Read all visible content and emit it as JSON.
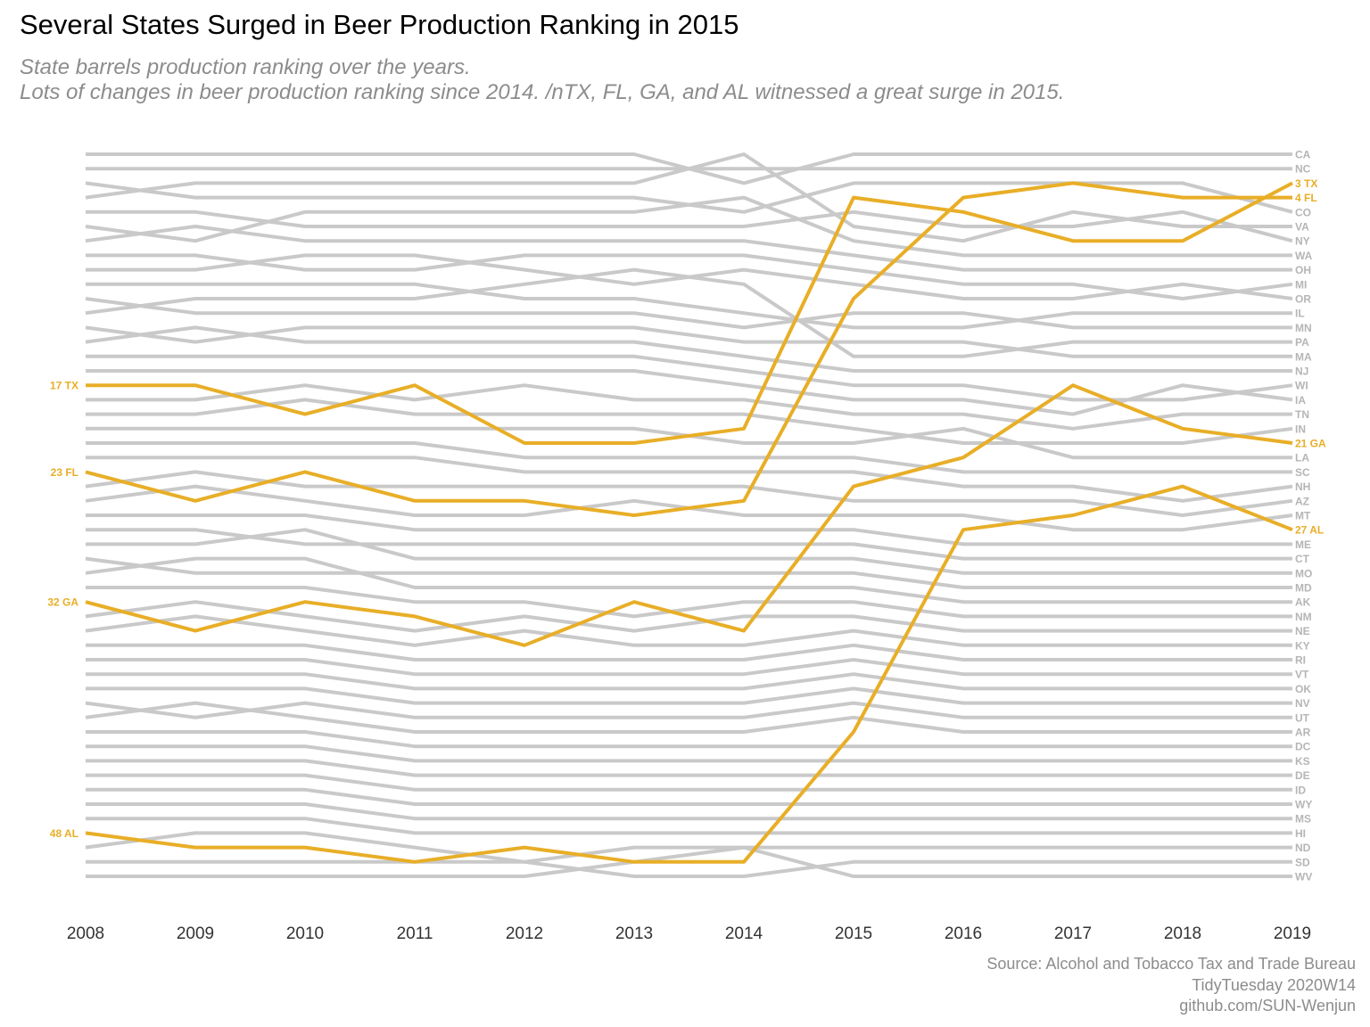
{
  "title": "Several States Surged in Beer Production Ranking in 2015",
  "subtitle_line1": "State barrels production ranking over the years.",
  "subtitle_line2": "Lots of changes in beer production ranking since 2014. /nTX, FL, GA, and AL witnessed a great surge in 2015.",
  "caption_line1": "Source: Alcohol and Tobacco Tax and Trade Bureau",
  "caption_line2": "TidyTuesday 2020W14",
  "caption_line3": "github.com/SUN-Wenjun",
  "colors": {
    "highlight": "#E8AE27",
    "background_lines": "#C9C9C9",
    "right_labels": "#B5B5B5",
    "axis_text": "#333333"
  },
  "chart_data": {
    "type": "line",
    "x": [
      2008,
      2009,
      2010,
      2011,
      2012,
      2013,
      2014,
      2015,
      2016,
      2017,
      2018,
      2019
    ],
    "y_reversed": true,
    "ylim": [
      1,
      51
    ],
    "grid": false,
    "highlight_series": [
      {
        "name": "TX",
        "values": [
          17,
          17,
          19,
          17,
          21,
          21,
          20,
          4,
          5,
          7,
          7,
          3
        ]
      },
      {
        "name": "FL",
        "values": [
          23,
          25,
          23,
          25,
          25,
          26,
          25,
          11,
          4,
          3,
          4,
          4
        ]
      },
      {
        "name": "GA",
        "values": [
          32,
          34,
          32,
          33,
          35,
          32,
          34,
          24,
          22,
          17,
          20,
          21
        ]
      },
      {
        "name": "AL",
        "values": [
          48,
          49,
          49,
          50,
          49,
          50,
          50,
          41,
          27,
          26,
          24,
          27
        ]
      }
    ],
    "left_labels": [
      {
        "rank": 17,
        "label": "17 TX"
      },
      {
        "rank": 23,
        "label": "23 FL"
      },
      {
        "rank": 32,
        "label": "32 GA"
      },
      {
        "rank": 48,
        "label": "48 AL"
      }
    ],
    "right_labels": [
      {
        "rank": 1,
        "label": "CA"
      },
      {
        "rank": 2,
        "label": "NC"
      },
      {
        "rank": 3,
        "label": "3 TX",
        "highlight": true
      },
      {
        "rank": 4,
        "label": "4 FL",
        "highlight": true
      },
      {
        "rank": 5,
        "label": "CO"
      },
      {
        "rank": 6,
        "label": "VA"
      },
      {
        "rank": 7,
        "label": "NY"
      },
      {
        "rank": 8,
        "label": "WA"
      },
      {
        "rank": 9,
        "label": "OH"
      },
      {
        "rank": 10,
        "label": "MI"
      },
      {
        "rank": 11,
        "label": "OR"
      },
      {
        "rank": 12,
        "label": "IL"
      },
      {
        "rank": 13,
        "label": "MN"
      },
      {
        "rank": 14,
        "label": "PA"
      },
      {
        "rank": 15,
        "label": "MA"
      },
      {
        "rank": 16,
        "label": "NJ"
      },
      {
        "rank": 17,
        "label": "WI"
      },
      {
        "rank": 18,
        "label": "IA"
      },
      {
        "rank": 19,
        "label": "TN"
      },
      {
        "rank": 20,
        "label": "IN"
      },
      {
        "rank": 21,
        "label": "21 GA",
        "highlight": true
      },
      {
        "rank": 22,
        "label": "LA"
      },
      {
        "rank": 23,
        "label": "SC"
      },
      {
        "rank": 24,
        "label": "NH"
      },
      {
        "rank": 25,
        "label": "AZ"
      },
      {
        "rank": 26,
        "label": "MT"
      },
      {
        "rank": 27,
        "label": "27 AL",
        "highlight": true
      },
      {
        "rank": 28,
        "label": "ME"
      },
      {
        "rank": 29,
        "label": "CT"
      },
      {
        "rank": 30,
        "label": "MO"
      },
      {
        "rank": 31,
        "label": "MD"
      },
      {
        "rank": 32,
        "label": "AK"
      },
      {
        "rank": 33,
        "label": "NM"
      },
      {
        "rank": 34,
        "label": "NE"
      },
      {
        "rank": 35,
        "label": "KY"
      },
      {
        "rank": 36,
        "label": "RI"
      },
      {
        "rank": 37,
        "label": "VT"
      },
      {
        "rank": 38,
        "label": "OK"
      },
      {
        "rank": 39,
        "label": "NV"
      },
      {
        "rank": 40,
        "label": "UT"
      },
      {
        "rank": 41,
        "label": "AR"
      },
      {
        "rank": 42,
        "label": "DC"
      },
      {
        "rank": 43,
        "label": "KS"
      },
      {
        "rank": 44,
        "label": "DE"
      },
      {
        "rank": 45,
        "label": "ID"
      },
      {
        "rank": 46,
        "label": "WY"
      },
      {
        "rank": 47,
        "label": "MS"
      },
      {
        "rank": 48,
        "label": "HI"
      },
      {
        "rank": 49,
        "label": "ND"
      },
      {
        "rank": 50,
        "label": "SD"
      },
      {
        "rank": 51,
        "label": "WV"
      }
    ],
    "background_series": [
      [
        1,
        1,
        1,
        1,
        1,
        1,
        3,
        1,
        1,
        1,
        1,
        1
      ],
      [
        2,
        2,
        2,
        2,
        2,
        2,
        2,
        2,
        2,
        2,
        2,
        2
      ],
      [
        3,
        4,
        4,
        4,
        4,
        4,
        5,
        3,
        3,
        3,
        3,
        5
      ],
      [
        4,
        3,
        3,
        3,
        3,
        3,
        1,
        6,
        7,
        5,
        6,
        6
      ],
      [
        5,
        5,
        6,
        6,
        6,
        6,
        6,
        5,
        6,
        6,
        5,
        7
      ],
      [
        6,
        7,
        5,
        5,
        5,
        5,
        4,
        7,
        8,
        8,
        8,
        8
      ],
      [
        7,
        6,
        7,
        7,
        7,
        7,
        7,
        8,
        9,
        9,
        9,
        9
      ],
      [
        8,
        8,
        9,
        9,
        8,
        8,
        8,
        9,
        10,
        10,
        11,
        10
      ],
      [
        9,
        9,
        8,
        8,
        9,
        10,
        9,
        10,
        11,
        11,
        10,
        11
      ],
      [
        10,
        10,
        10,
        10,
        11,
        11,
        12,
        13,
        13,
        12,
        12,
        12
      ],
      [
        11,
        12,
        12,
        12,
        12,
        12,
        13,
        12,
        12,
        13,
        13,
        13
      ],
      [
        12,
        11,
        11,
        11,
        10,
        9,
        10,
        15,
        15,
        14,
        14,
        14
      ],
      [
        13,
        14,
        13,
        13,
        13,
        13,
        14,
        14,
        14,
        15,
        15,
        15
      ],
      [
        14,
        13,
        14,
        14,
        14,
        14,
        15,
        16,
        16,
        16,
        16,
        16
      ],
      [
        15,
        15,
        15,
        15,
        15,
        15,
        16,
        17,
        17,
        18,
        18,
        17
      ],
      [
        16,
        16,
        16,
        16,
        16,
        16,
        17,
        18,
        18,
        19,
        17,
        18
      ],
      [
        18,
        18,
        17,
        18,
        17,
        18,
        18,
        19,
        19,
        20,
        19,
        19
      ],
      [
        19,
        19,
        18,
        19,
        19,
        19,
        19,
        20,
        21,
        21,
        21,
        20
      ],
      [
        20,
        20,
        20,
        20,
        20,
        20,
        21,
        21,
        20,
        22,
        22,
        22
      ],
      [
        21,
        21,
        21,
        21,
        22,
        22,
        22,
        22,
        23,
        23,
        23,
        23
      ],
      [
        22,
        22,
        22,
        22,
        23,
        23,
        23,
        23,
        24,
        24,
        25,
        24
      ],
      [
        24,
        23,
        24,
        24,
        24,
        24,
        24,
        25,
        25,
        25,
        26,
        25
      ],
      [
        25,
        24,
        25,
        26,
        26,
        25,
        26,
        26,
        26,
        27,
        27,
        26
      ],
      [
        26,
        26,
        26,
        27,
        27,
        27,
        27,
        27,
        28,
        28,
        28,
        28
      ],
      [
        27,
        27,
        28,
        28,
        28,
        28,
        28,
        28,
        29,
        29,
        29,
        29
      ],
      [
        28,
        28,
        27,
        29,
        29,
        29,
        29,
        29,
        30,
        30,
        30,
        30
      ],
      [
        29,
        30,
        30,
        30,
        30,
        30,
        30,
        30,
        31,
        31,
        31,
        31
      ],
      [
        30,
        29,
        29,
        31,
        31,
        31,
        31,
        31,
        32,
        32,
        32,
        32
      ],
      [
        31,
        31,
        31,
        32,
        32,
        33,
        32,
        32,
        33,
        33,
        33,
        33
      ],
      [
        33,
        32,
        33,
        34,
        33,
        34,
        33,
        33,
        34,
        34,
        34,
        34
      ],
      [
        34,
        33,
        34,
        35,
        34,
        35,
        35,
        34,
        35,
        35,
        35,
        35
      ],
      [
        35,
        35,
        35,
        36,
        36,
        36,
        36,
        35,
        36,
        36,
        36,
        36
      ],
      [
        36,
        36,
        36,
        37,
        37,
        37,
        37,
        36,
        37,
        37,
        37,
        37
      ],
      [
        37,
        37,
        37,
        38,
        38,
        38,
        38,
        37,
        38,
        38,
        38,
        38
      ],
      [
        38,
        38,
        38,
        39,
        39,
        39,
        39,
        38,
        39,
        39,
        39,
        39
      ],
      [
        39,
        40,
        39,
        40,
        40,
        40,
        40,
        39,
        40,
        40,
        40,
        40
      ],
      [
        40,
        39,
        40,
        41,
        41,
        41,
        41,
        40,
        41,
        41,
        41,
        41
      ],
      [
        41,
        41,
        41,
        42,
        42,
        42,
        42,
        42,
        42,
        42,
        42,
        42
      ],
      [
        42,
        42,
        42,
        43,
        43,
        43,
        43,
        43,
        43,
        43,
        43,
        43
      ],
      [
        43,
        43,
        43,
        44,
        44,
        44,
        44,
        44,
        44,
        44,
        44,
        44
      ],
      [
        44,
        44,
        44,
        45,
        45,
        45,
        45,
        45,
        45,
        45,
        45,
        45
      ],
      [
        45,
        45,
        45,
        46,
        46,
        46,
        46,
        46,
        46,
        46,
        46,
        46
      ],
      [
        46,
        46,
        46,
        47,
        47,
        47,
        47,
        47,
        47,
        47,
        47,
        47
      ],
      [
        47,
        47,
        47,
        48,
        48,
        48,
        48,
        48,
        48,
        48,
        48,
        48
      ],
      [
        49,
        48,
        48,
        49,
        50,
        49,
        49,
        49,
        49,
        49,
        49,
        49
      ],
      [
        50,
        50,
        50,
        50,
        50,
        51,
        51,
        50,
        50,
        50,
        50,
        50
      ],
      [
        51,
        51,
        51,
        51,
        51,
        50,
        49,
        51,
        51,
        51,
        51,
        51
      ]
    ]
  }
}
